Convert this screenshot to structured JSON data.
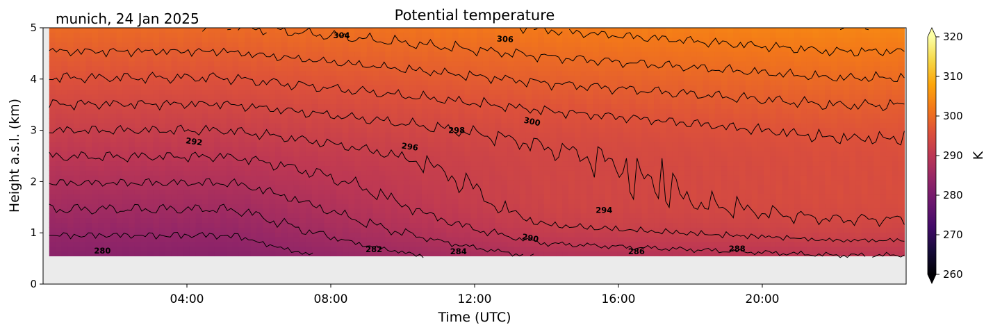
{
  "chart_data": {
    "type": "heatmap",
    "title": "Potential temperature",
    "subtitle": "munich, 24 Jan 2025",
    "xlabel": "Time (UTC)",
    "ylabel": "Height a.s.l. (km)",
    "x_ticks": [
      "04:00",
      "08:00",
      "12:00",
      "16:00",
      "20:00"
    ],
    "x_tick_hours": [
      4,
      8,
      12,
      16,
      20
    ],
    "xlim_hours": [
      0,
      24
    ],
    "y_ticks": [
      "0",
      "1",
      "2",
      "3",
      "4",
      "5"
    ],
    "ylim": [
      0,
      5
    ],
    "data_ylim": [
      0.55,
      5
    ],
    "data_xlim_hours": [
      0.17,
      23.95
    ],
    "colorbar": {
      "label": "K",
      "ticks": [
        "260",
        "270",
        "280",
        "290",
        "300",
        "310",
        "320"
      ],
      "range": [
        260,
        320
      ],
      "extend": "both",
      "colormap": "inferno"
    },
    "contours": {
      "levels": [
        280,
        282,
        284,
        286,
        288,
        290,
        292,
        294,
        296,
        298,
        300,
        302,
        304,
        306
      ],
      "labels": [
        {
          "text": "280",
          "hour": 1.65,
          "height": 0.65,
          "rot": 0
        },
        {
          "text": "282",
          "hour": 9.2,
          "height": 0.68,
          "rot": 0
        },
        {
          "text": "284",
          "hour": 11.55,
          "height": 0.64,
          "rot": 0
        },
        {
          "text": "286",
          "hour": 16.5,
          "height": 0.64,
          "rot": 0
        },
        {
          "text": "288",
          "hour": 19.3,
          "height": 0.69,
          "rot": 0
        },
        {
          "text": "290",
          "hour": 13.55,
          "height": 0.9,
          "rot": 10
        },
        {
          "text": "292",
          "hour": 4.2,
          "height": 2.78,
          "rot": 8
        },
        {
          "text": "294",
          "hour": 15.6,
          "height": 1.44,
          "rot": 0
        },
        {
          "text": "296",
          "hour": 10.2,
          "height": 2.68,
          "rot": 8
        },
        {
          "text": "298",
          "hour": 11.5,
          "height": 3.0,
          "rot": 0
        },
        {
          "text": "300",
          "hour": 13.6,
          "height": 3.17,
          "rot": 12
        },
        {
          "text": "304",
          "hour": 8.3,
          "height": 4.85,
          "rot": 0
        },
        {
          "text": "306",
          "hour": 12.85,
          "height": 4.78,
          "rot": 3
        }
      ]
    },
    "colors": {
      "no_data": "#ebebeb",
      "contour": "#000000"
    }
  }
}
